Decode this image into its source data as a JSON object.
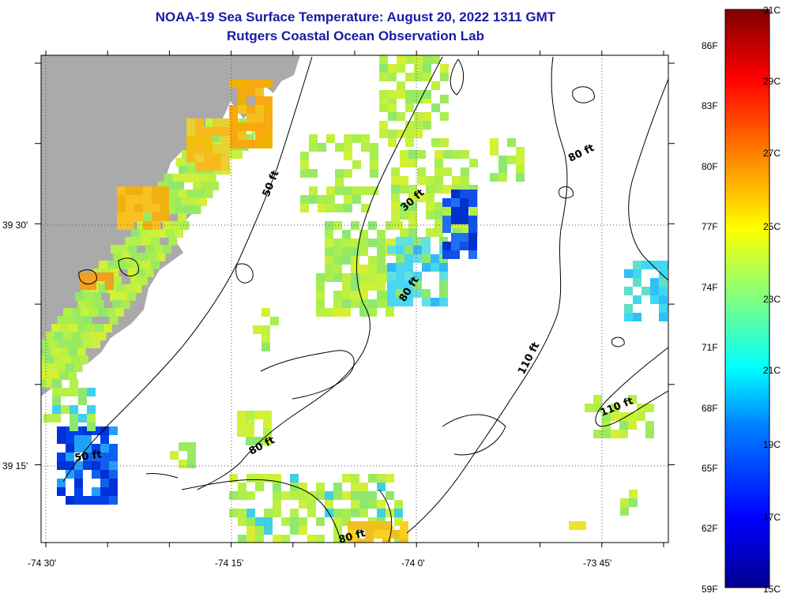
{
  "title_line1": "NOAA-19 Sea Surface Temperature:  August 20, 2022 1311 GMT",
  "title_line2": "Rutgers Coastal Ocean Observation Lab",
  "x_ticks": [
    {
      "value": -74.5,
      "label": "-74 30'"
    },
    {
      "value": -74.25,
      "label": "-74 15'"
    },
    {
      "value": -74.0,
      "label": "-74 0'"
    },
    {
      "value": -73.75,
      "label": "-73 45'"
    }
  ],
  "y_ticks": [
    {
      "value": 39.5,
      "label": "39 30'"
    },
    {
      "value": 39.25,
      "label": "39 15'"
    }
  ],
  "colorbar": {
    "fahrenheit": [
      "86F",
      "83F",
      "80F",
      "77F",
      "74F",
      "71F",
      "68F",
      "65F",
      "62F",
      "59F"
    ],
    "celsius": [
      "31C",
      "29C",
      "27C",
      "25C",
      "23C",
      "21C",
      "19C",
      "17C",
      "15C"
    ],
    "min_c": 15,
    "max_c": 31
  },
  "depth_labels": [
    "50 ft",
    "30 ft",
    "80 ft",
    "80 ft",
    "110 ft",
    "110 ft",
    "50 ft",
    "80 ft",
    "80 ft"
  ],
  "colors": {
    "land": "#aaaaaa",
    "title": "#1a1aa6"
  }
}
